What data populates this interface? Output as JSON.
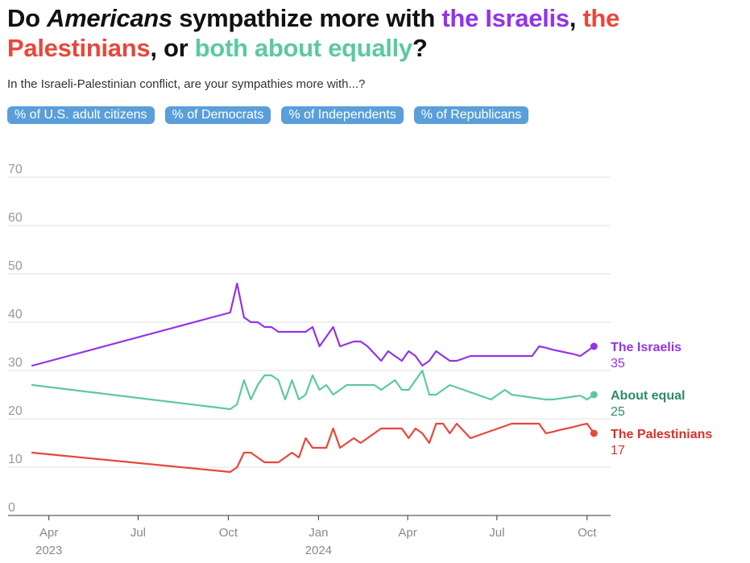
{
  "title": {
    "p1": "Do ",
    "p2": "Americans",
    "p3": " sympathize more with ",
    "p4": "the Israelis",
    "p5": ", ",
    "p6": "the Palestinians",
    "p7": ", or ",
    "p8": "both about equally",
    "p9": "?"
  },
  "subtitle": "In the Israeli-Palestinian conflict, are your sympathies more with...?",
  "filters": [
    {
      "label": "% of U.S. adult citizens"
    },
    {
      "label": "% of Democrats"
    },
    {
      "label": "% of Independents"
    },
    {
      "label": "% of Republicans"
    }
  ],
  "colors": {
    "israelis": "#9333ea",
    "palestinians": "#e8473a",
    "equal": "#5cc9a0",
    "equal_label": "#2e8b68",
    "palestinians_label": "#d9302a",
    "chip": "#5a9fd9"
  },
  "chart_data": {
    "type": "line",
    "ylim": [
      0,
      70
    ],
    "y_ticks": [
      0,
      10,
      20,
      30,
      40,
      50,
      60,
      70
    ],
    "x_ticks": [
      {
        "date": "2023-04-01",
        "label": "Apr",
        "sub": "2023"
      },
      {
        "date": "2023-07-01",
        "label": "Jul",
        "sub": ""
      },
      {
        "date": "2023-10-01",
        "label": "Oct",
        "sub": ""
      },
      {
        "date": "2024-01-01",
        "label": "Jan",
        "sub": "2024"
      },
      {
        "date": "2024-04-01",
        "label": "Apr",
        "sub": ""
      },
      {
        "date": "2024-07-01",
        "label": "Jul",
        "sub": ""
      },
      {
        "date": "2024-10-01",
        "label": "Oct",
        "sub": ""
      }
    ],
    "x_range": [
      "2023-03-15",
      "2024-10-25"
    ],
    "series": [
      {
        "key": "israelis",
        "name": "The Israelis",
        "last_value": "35",
        "dates": [
          "2023-03-15",
          "2023-10-03",
          "2023-10-10",
          "2023-10-17",
          "2023-10-24",
          "2023-10-31",
          "2023-11-07",
          "2023-11-14",
          "2023-11-21",
          "2023-11-28",
          "2023-12-05",
          "2023-12-12",
          "2023-12-19",
          "2023-12-26",
          "2024-01-02",
          "2024-01-09",
          "2024-01-16",
          "2024-01-23",
          "2024-01-30",
          "2024-02-06",
          "2024-02-13",
          "2024-02-20",
          "2024-02-27",
          "2024-03-05",
          "2024-03-12",
          "2024-03-19",
          "2024-03-26",
          "2024-04-02",
          "2024-04-09",
          "2024-04-16",
          "2024-04-23",
          "2024-04-30",
          "2024-05-07",
          "2024-05-14",
          "2024-05-21",
          "2024-05-28",
          "2024-06-04",
          "2024-06-11",
          "2024-06-18",
          "2024-06-25",
          "2024-07-02",
          "2024-07-09",
          "2024-07-16",
          "2024-07-23",
          "2024-07-30",
          "2024-08-06",
          "2024-08-13",
          "2024-08-20",
          "2024-08-27",
          "2024-09-03",
          "2024-09-10",
          "2024-09-17",
          "2024-09-24",
          "2024-10-01",
          "2024-10-08"
        ],
        "values": [
          31,
          42,
          48,
          41,
          40,
          40,
          39,
          39,
          38,
          38,
          38,
          38,
          38,
          39,
          35,
          37,
          39,
          35,
          35.5,
          36,
          36,
          35,
          33.5,
          32,
          34,
          33,
          32,
          34,
          33,
          31,
          32,
          34,
          33,
          32,
          32,
          32.5,
          33,
          33,
          33,
          33,
          33,
          33,
          33,
          33,
          33,
          33,
          35,
          34.7,
          34.3,
          34,
          33.7,
          33.4,
          33,
          34,
          35
        ]
      },
      {
        "key": "equal",
        "name": "About equal",
        "last_value": "25",
        "dates": [
          "2023-03-15",
          "2023-10-03",
          "2023-10-10",
          "2023-10-17",
          "2023-10-24",
          "2023-10-31",
          "2023-11-07",
          "2023-11-14",
          "2023-11-21",
          "2023-11-28",
          "2023-12-05",
          "2023-12-12",
          "2023-12-19",
          "2023-12-26",
          "2024-01-02",
          "2024-01-09",
          "2024-01-16",
          "2024-01-23",
          "2024-01-30",
          "2024-02-06",
          "2024-02-13",
          "2024-02-20",
          "2024-02-27",
          "2024-03-05",
          "2024-03-12",
          "2024-03-19",
          "2024-03-26",
          "2024-04-02",
          "2024-04-09",
          "2024-04-16",
          "2024-04-23",
          "2024-04-30",
          "2024-05-07",
          "2024-05-14",
          "2024-05-21",
          "2024-05-28",
          "2024-06-04",
          "2024-06-11",
          "2024-06-18",
          "2024-06-25",
          "2024-07-02",
          "2024-07-09",
          "2024-07-16",
          "2024-07-23",
          "2024-07-30",
          "2024-08-06",
          "2024-08-13",
          "2024-08-20",
          "2024-08-27",
          "2024-09-03",
          "2024-09-10",
          "2024-09-17",
          "2024-09-24",
          "2024-10-01",
          "2024-10-08"
        ],
        "values": [
          27,
          22,
          23,
          28,
          24,
          27,
          29,
          29,
          28,
          24,
          28,
          24,
          25,
          29,
          26,
          27,
          25,
          26,
          27,
          27,
          27,
          27,
          27,
          26,
          27,
          28,
          26,
          26,
          28,
          30,
          25,
          25,
          26,
          27,
          26.5,
          26,
          25.5,
          25,
          24.5,
          24,
          25,
          26,
          25,
          24.8,
          24.6,
          24.4,
          24.2,
          24,
          24,
          24.2,
          24.4,
          24.6,
          24.8,
          24,
          25
        ]
      },
      {
        "key": "palestinians",
        "name": "The Palestinians",
        "last_value": "17",
        "dates": [
          "2023-03-15",
          "2023-10-03",
          "2023-10-10",
          "2023-10-17",
          "2023-10-24",
          "2023-10-31",
          "2023-11-07",
          "2023-11-14",
          "2023-11-21",
          "2023-11-28",
          "2023-12-05",
          "2023-12-12",
          "2023-12-19",
          "2023-12-26",
          "2024-01-02",
          "2024-01-09",
          "2024-01-16",
          "2024-01-23",
          "2024-01-30",
          "2024-02-06",
          "2024-02-13",
          "2024-02-20",
          "2024-02-27",
          "2024-03-05",
          "2024-03-12",
          "2024-03-19",
          "2024-03-26",
          "2024-04-02",
          "2024-04-09",
          "2024-04-16",
          "2024-04-23",
          "2024-04-30",
          "2024-05-07",
          "2024-05-14",
          "2024-05-21",
          "2024-05-28",
          "2024-06-04",
          "2024-06-11",
          "2024-06-18",
          "2024-06-25",
          "2024-07-02",
          "2024-07-09",
          "2024-07-16",
          "2024-07-23",
          "2024-07-30",
          "2024-08-06",
          "2024-08-13",
          "2024-08-20",
          "2024-08-27",
          "2024-09-03",
          "2024-09-10",
          "2024-09-17",
          "2024-09-24",
          "2024-10-01",
          "2024-10-08"
        ],
        "values": [
          13,
          9,
          10,
          13,
          13,
          12,
          11,
          11,
          11,
          12,
          13,
          12,
          16,
          14,
          14,
          14,
          18,
          14,
          15,
          16,
          15,
          16,
          17,
          18,
          18,
          18,
          18,
          16,
          18,
          17,
          15,
          19,
          19,
          17,
          19,
          17.5,
          16,
          16.5,
          17,
          17.5,
          18,
          18.5,
          19,
          19,
          19,
          19,
          19,
          17,
          17.3,
          17.7,
          18,
          18.3,
          18.7,
          19,
          17
        ]
      }
    ]
  }
}
